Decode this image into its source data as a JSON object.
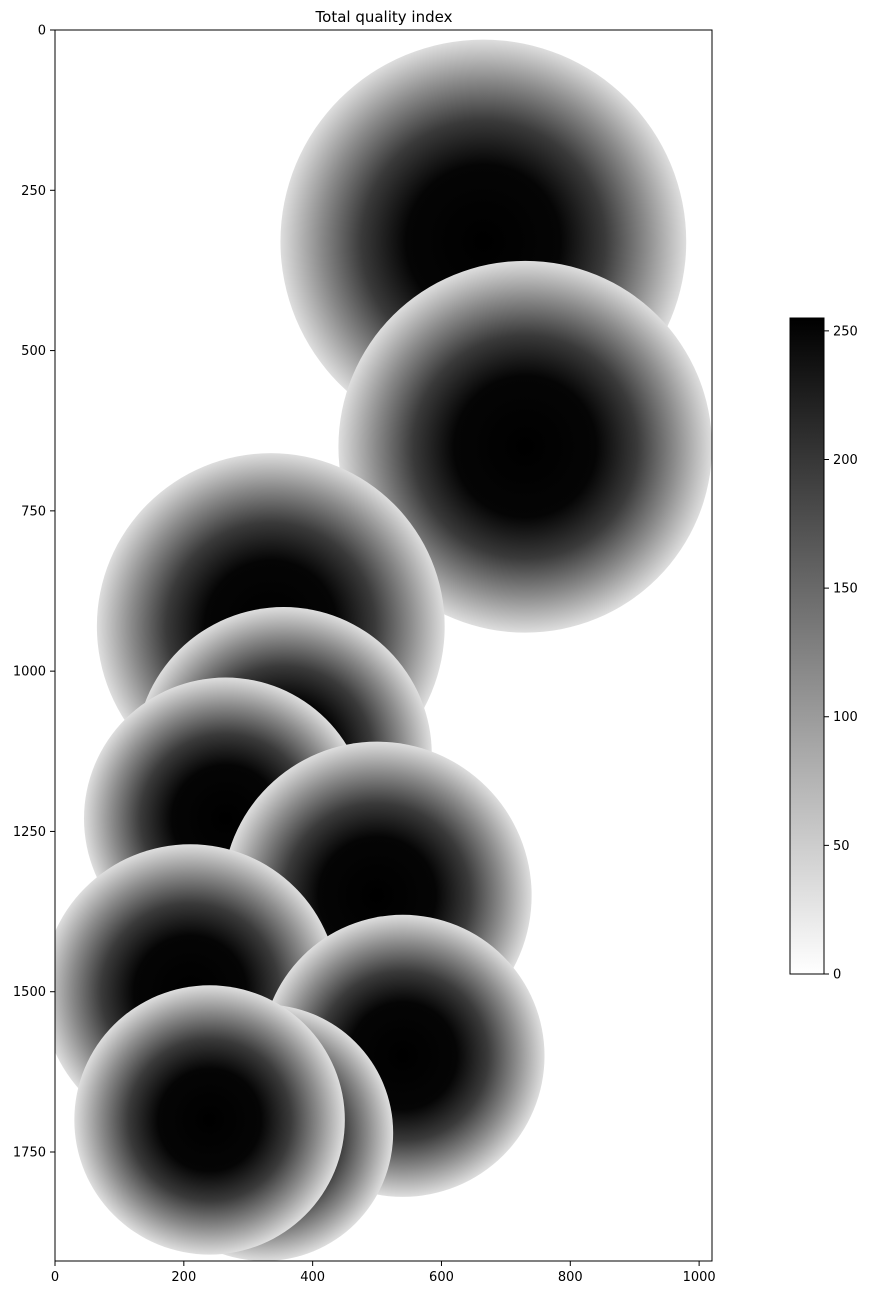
{
  "chart_data": {
    "type": "heatmap",
    "title": "Total quality index",
    "xlabel": "",
    "ylabel": "",
    "xlim": [
      0,
      1020
    ],
    "ylim": [
      1920,
      0
    ],
    "x_ticks": [
      0,
      200,
      400,
      600,
      800,
      1000
    ],
    "y_ticks": [
      0,
      250,
      500,
      750,
      1000,
      1250,
      1500,
      1750
    ],
    "grid": false,
    "colormap": "gray_r",
    "colorbar": {
      "min": 0,
      "max": 255,
      "ticks": [
        0,
        50,
        100,
        150,
        200,
        250
      ]
    },
    "radar_footprints": [
      {
        "cx": 665,
        "cy": 330,
        "r": 315
      },
      {
        "cx": 730,
        "cy": 650,
        "r": 290
      },
      {
        "cx": 335,
        "cy": 930,
        "r": 270
      },
      {
        "cx": 355,
        "cy": 1130,
        "r": 230
      },
      {
        "cx": 265,
        "cy": 1230,
        "r": 220
      },
      {
        "cx": 500,
        "cy": 1350,
        "r": 240
      },
      {
        "cx": 210,
        "cy": 1500,
        "r": 230
      },
      {
        "cx": 540,
        "cy": 1600,
        "r": 220
      },
      {
        "cx": 325,
        "cy": 1720,
        "r": 200
      },
      {
        "cx": 240,
        "cy": 1700,
        "r": 210
      }
    ],
    "colors": {
      "high_quality": "#000000",
      "low_quality": "#ffffff"
    }
  }
}
